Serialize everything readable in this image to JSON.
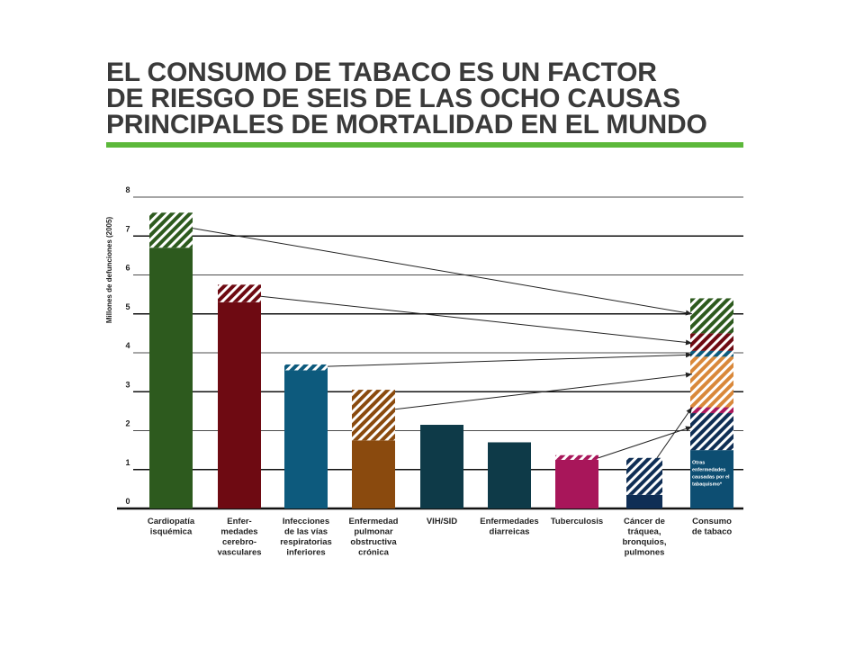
{
  "title_lines": [
    "EL CONSUMO DE TABACO ES UN FACTOR",
    "DE RIESGO DE SEIS DE LAS OCHO CAUSAS",
    "PRINCIPALES DE MORTALIDAD EN EL MUNDO"
  ],
  "colors": {
    "title_rule": "#5cb83a",
    "title_text": "#3a3a3a"
  },
  "chart_data": {
    "type": "bar",
    "title": "EL CONSUMO DE TABACO ES UN FACTOR DE RIESGO DE SEIS DE LAS OCHO CAUSAS PRINCIPALES DE MORTALIDAD EN EL MUNDO",
    "ylabel": "Millones de defunciones (2005)",
    "xlabel": "",
    "ylim": [
      0,
      8
    ],
    "yticks": [
      0,
      1,
      2,
      3,
      4,
      5,
      6,
      7,
      8
    ],
    "grid": true,
    "stacked": true,
    "categories": [
      "Cardiopatía isquémica",
      "Enfer-medades cerebro-vasculares",
      "Infecciones de las vías respiratorias inferiores",
      "Enfermedad pulmonar obstructiva crónica",
      "VIH/SID",
      "Enfermedades diarreicas",
      "Tuberculosis",
      "Cáncer de tráquea, bronquios, pulmones",
      "Consumo de tabaco"
    ],
    "category_label_lines": [
      [
        "Cardiopatía",
        "isquémica"
      ],
      [
        "Enfer-",
        "medades",
        "cerebro-",
        "vasculares"
      ],
      [
        "Infecciones",
        "de las vías",
        "respiratorias",
        "inferiores"
      ],
      [
        "Enfermedad",
        "pulmonar",
        "obstructiva",
        "crónica"
      ],
      [
        "VIH/SID"
      ],
      [
        "Enfermedades",
        "diarreicas"
      ],
      [
        "Tuberculosis"
      ],
      [
        "Cáncer de",
        "tráquea,",
        "bronquios,",
        "pulmones"
      ],
      [
        "Consumo",
        "de tabaco"
      ]
    ],
    "bar_colors": [
      "#2d5a1e",
      "#6e0a12",
      "#0d5a7d",
      "#8a4a0e",
      "#0e3a48",
      "#0e3a48",
      "#a8165a",
      "#0f2e55"
    ],
    "series": [
      {
        "values": [
          6.7,
          5.3,
          3.55,
          1.75,
          2.15,
          1.7,
          1.25,
          0.35,
          null
        ]
      },
      {
        "values": [
          0.9,
          0.45,
          0.15,
          1.3,
          0,
          0,
          0.12,
          0.95,
          null
        ]
      }
    ],
    "tobacco_stack": [
      {
        "from": 0,
        "to": 1.5,
        "color": "#0d4e72",
        "hatched": false
      },
      {
        "from": 1.5,
        "to": 2.45,
        "color": "#0f2e55",
        "hatched": true
      },
      {
        "from": 2.45,
        "to": 2.6,
        "color": "#a8165a",
        "hatched": true
      },
      {
        "from": 2.6,
        "to": 3.9,
        "color": "#d9883a",
        "hatched": true
      },
      {
        "from": 3.9,
        "to": 4.05,
        "color": "#0d5a7d",
        "hatched": true
      },
      {
        "from": 4.05,
        "to": 4.5,
        "color": "#6e0a12",
        "hatched": true
      },
      {
        "from": 4.5,
        "to": 5.4,
        "color": "#2d5a1e",
        "hatched": true
      }
    ],
    "annotation_lines": [
      "Otras",
      "enfermedades",
      "causadas por el",
      "tabaquismo*"
    ],
    "arrows": [
      {
        "from_category": 0,
        "from_value": 7.2,
        "to_value": 5.0
      },
      {
        "from_category": 1,
        "from_value": 5.45,
        "to_value": 4.25
      },
      {
        "from_category": 2,
        "from_value": 3.65,
        "to_value": 3.95
      },
      {
        "from_category": 3,
        "from_value": 2.55,
        "to_value": 3.45
      },
      {
        "from_category": 6,
        "from_value": 1.3,
        "to_value": 2.1
      },
      {
        "from_category": 7,
        "from_value": 1.3,
        "to_value": 2.6
      }
    ]
  }
}
